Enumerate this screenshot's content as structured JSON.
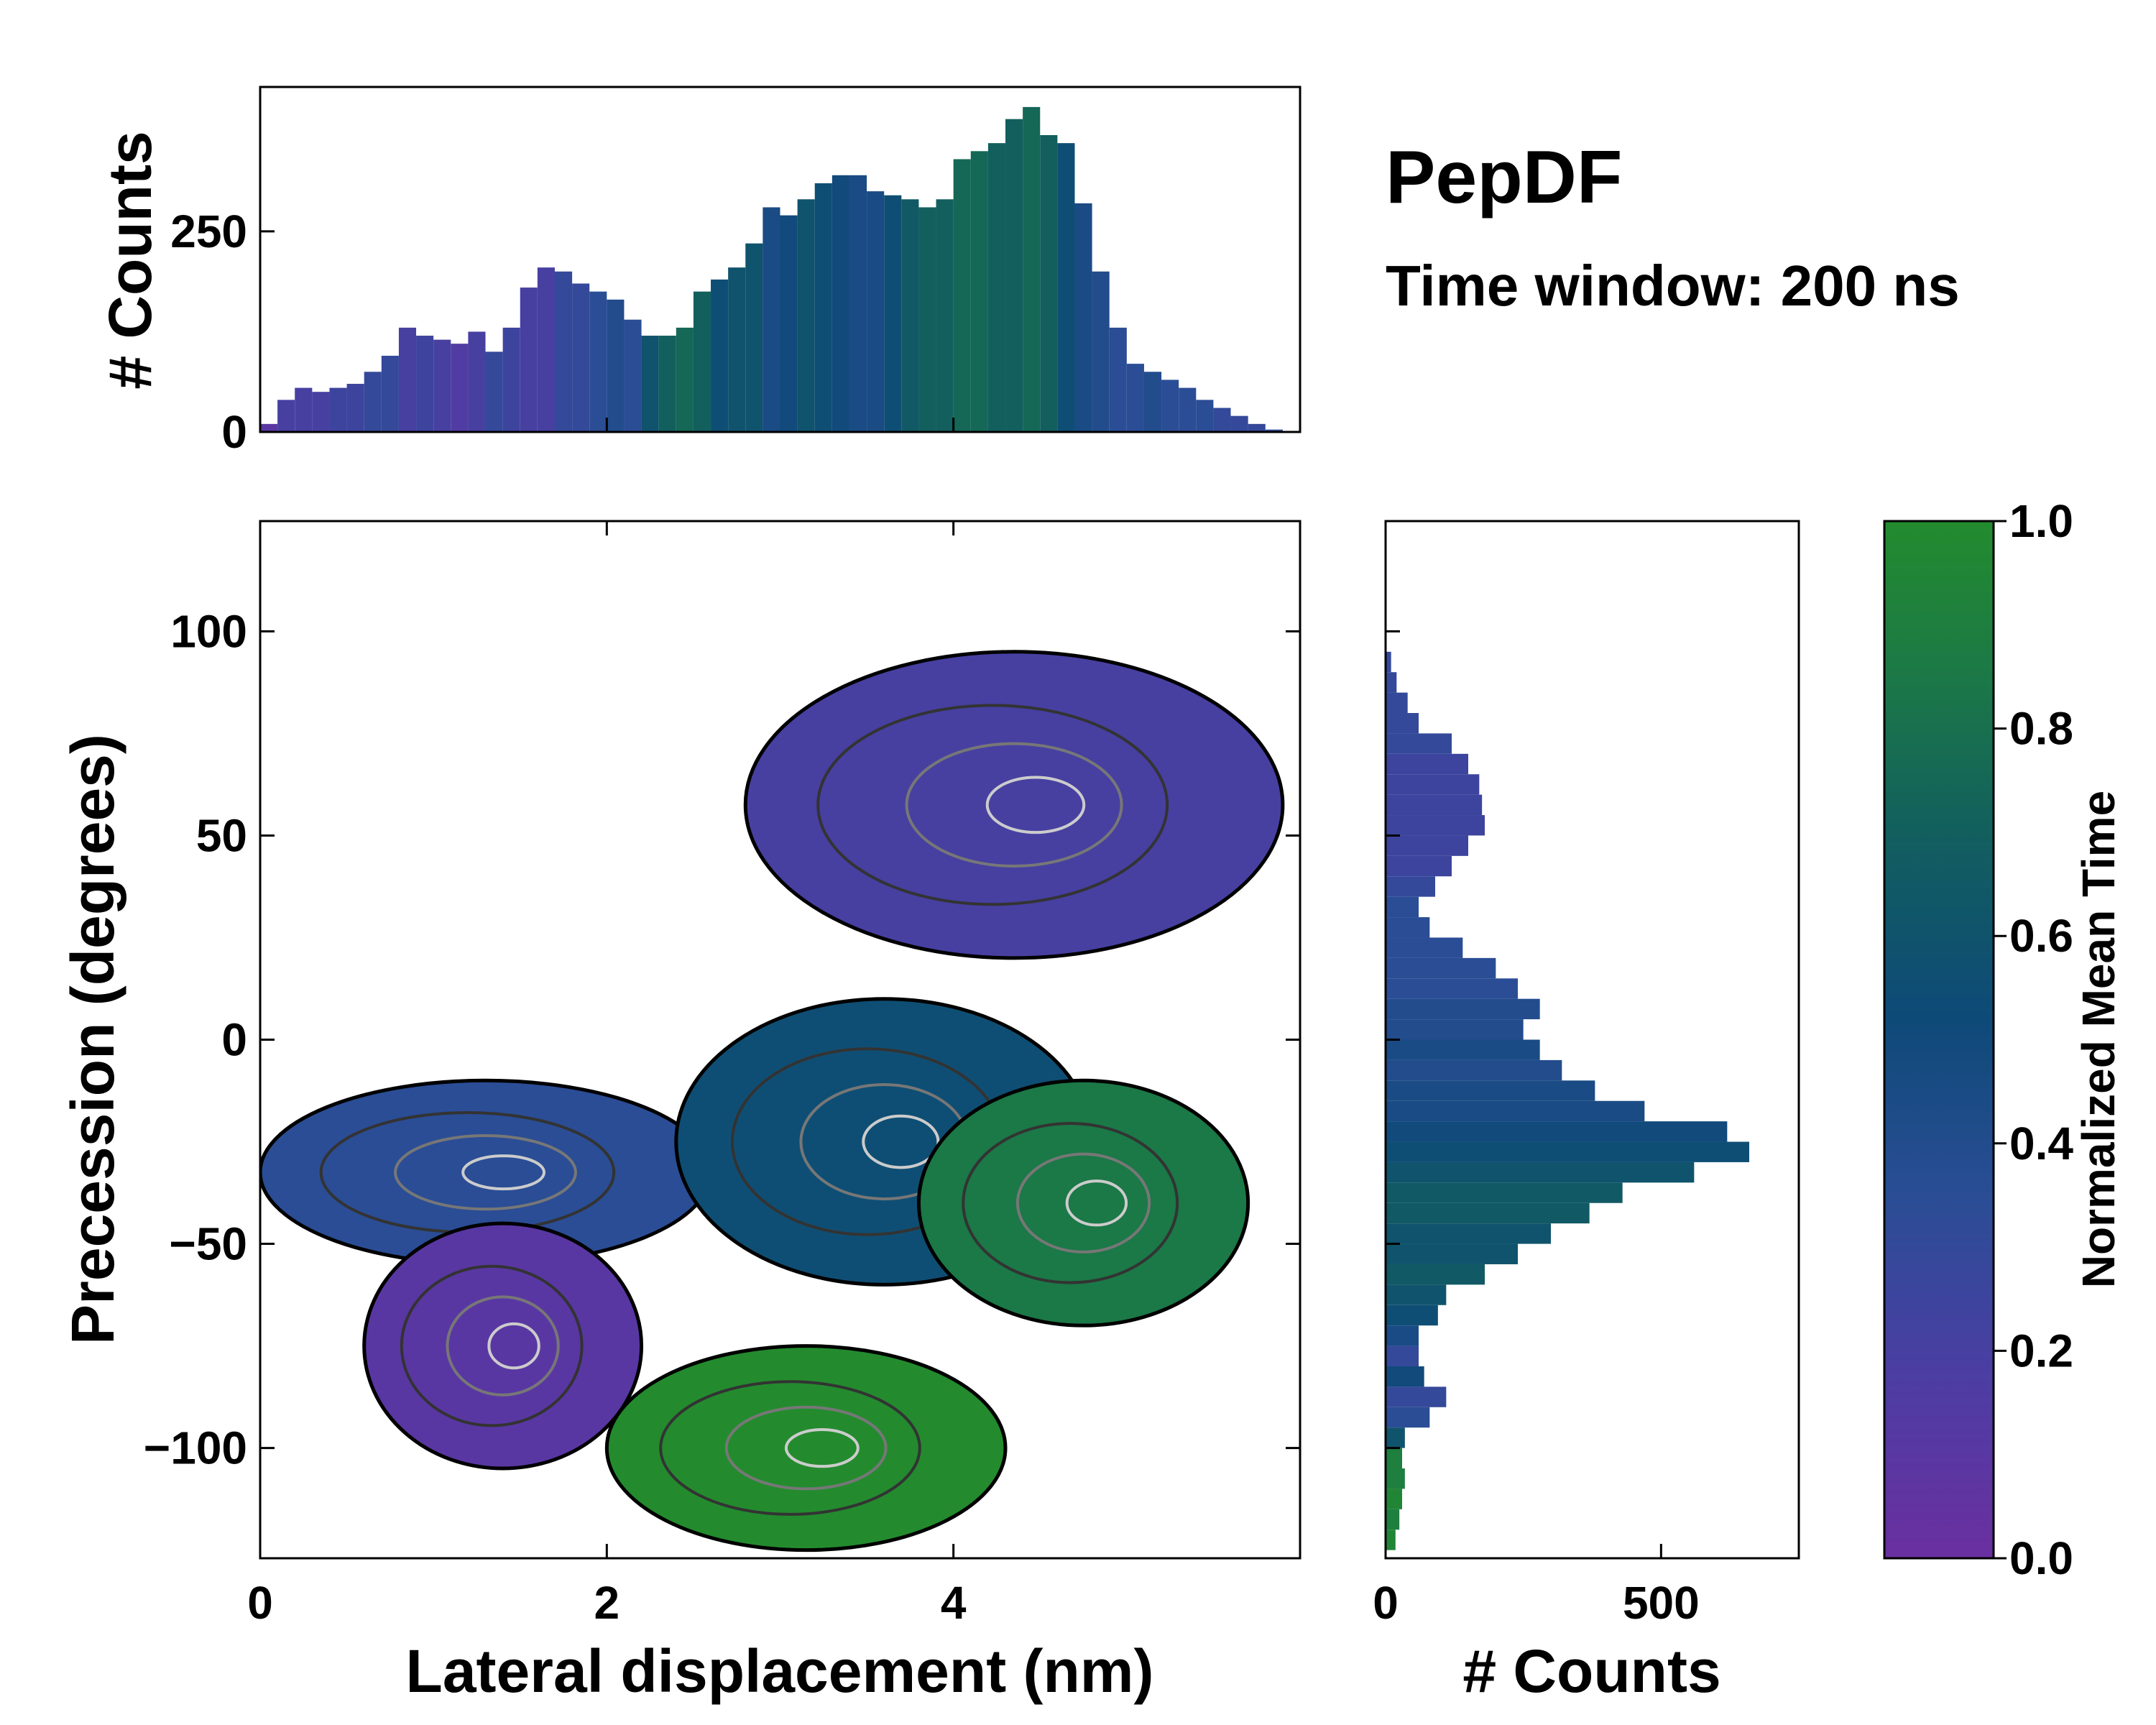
{
  "chart_data": [
    {
      "id": "main-2d",
      "type": "heatmap",
      "description_title": "PepDF",
      "subtitle": "Time window: 200 ns",
      "xlabel": "Lateral displacement (nm)",
      "ylabel": "Precession (degrees)",
      "xlim": [
        0,
        6.0
      ],
      "ylim": [
        -127,
        127
      ],
      "xticks": [
        0,
        2,
        4
      ],
      "xtick_labels": [
        "0",
        "2",
        "4"
      ],
      "yticks": [
        100,
        50,
        0,
        -50,
        -100
      ],
      "ytick_labels": [
        "100",
        "50",
        "0",
        "−50",
        "−100"
      ],
      "regions": [
        {
          "name": "upper-purple-blob",
          "color_value": 0.2,
          "x": [
            2.8,
            5.9
          ],
          "y": [
            20,
            95
          ]
        },
        {
          "name": "left-blue-band",
          "color_value": 0.35,
          "x": [
            0.0,
            2.6
          ],
          "y": [
            -55,
            -10
          ]
        },
        {
          "name": "center-teal-band",
          "color_value": 0.55,
          "x": [
            2.4,
            4.8
          ],
          "y": [
            -60,
            10
          ]
        },
        {
          "name": "lower-left-purple",
          "color_value": 0.1,
          "x": [
            0.6,
            2.2
          ],
          "y": [
            -105,
            -45
          ]
        },
        {
          "name": "bottom-green",
          "color_value": 1.0,
          "x": [
            2.0,
            4.3
          ],
          "y": [
            -125,
            -75
          ]
        },
        {
          "name": "right-green",
          "color_value": 0.85,
          "x": [
            3.8,
            5.7
          ],
          "y": [
            -70,
            -10
          ]
        }
      ]
    },
    {
      "id": "top-hist",
      "type": "bar",
      "ylabel": "# Counts",
      "xlim": [
        0,
        6.0
      ],
      "ylim": [
        0,
        430
      ],
      "yticks": [
        0,
        250
      ],
      "ytick_labels": [
        "0",
        "250"
      ],
      "x": [
        0.05,
        0.15,
        0.25,
        0.35,
        0.45,
        0.55,
        0.65,
        0.75,
        0.85,
        0.95,
        1.05,
        1.15,
        1.25,
        1.35,
        1.45,
        1.55,
        1.65,
        1.75,
        1.85,
        1.95,
        2.05,
        2.15,
        2.25,
        2.35,
        2.45,
        2.55,
        2.65,
        2.75,
        2.85,
        2.95,
        3.05,
        3.15,
        3.25,
        3.35,
        3.45,
        3.55,
        3.65,
        3.75,
        3.85,
        3.95,
        4.05,
        4.15,
        4.25,
        4.35,
        4.45,
        4.55,
        4.65,
        4.75,
        4.85,
        4.95,
        5.05,
        5.15,
        5.25,
        5.35,
        5.45,
        5.55,
        5.65,
        5.75,
        5.85,
        5.95
      ],
      "values": [
        10,
        40,
        55,
        50,
        55,
        60,
        75,
        95,
        130,
        120,
        115,
        110,
        125,
        100,
        130,
        180,
        205,
        200,
        185,
        175,
        165,
        140,
        120,
        120,
        130,
        175,
        190,
        205,
        235,
        280,
        270,
        290,
        310,
        320,
        320,
        300,
        295,
        290,
        280,
        290,
        340,
        350,
        360,
        390,
        405,
        370,
        360,
        285,
        200,
        130,
        85,
        75,
        65,
        55,
        40,
        30,
        20,
        10,
        3,
        0
      ],
      "color_values": [
        0.1,
        0.2,
        0.2,
        0.2,
        0.25,
        0.25,
        0.3,
        0.3,
        0.2,
        0.25,
        0.2,
        0.15,
        0.2,
        0.3,
        0.25,
        0.2,
        0.2,
        0.3,
        0.3,
        0.35,
        0.4,
        0.35,
        0.6,
        0.7,
        0.75,
        0.7,
        0.55,
        0.6,
        0.6,
        0.45,
        0.5,
        0.6,
        0.55,
        0.5,
        0.45,
        0.45,
        0.55,
        0.65,
        0.7,
        0.7,
        0.75,
        0.75,
        0.7,
        0.7,
        0.75,
        0.7,
        0.55,
        0.45,
        0.4,
        0.35,
        0.35,
        0.4,
        0.35,
        0.35,
        0.35,
        0.3,
        0.3,
        0.3,
        0.3,
        0.3
      ]
    },
    {
      "id": "right-hist",
      "type": "bar",
      "orientation": "horizontal",
      "xlabel": "# Counts",
      "xlim": [
        0,
        750
      ],
      "xticks": [
        0,
        500
      ],
      "xtick_labels": [
        "0",
        "500"
      ],
      "y": [
        92.5,
        87.5,
        82.5,
        77.5,
        72.5,
        67.5,
        62.5,
        57.5,
        52.5,
        47.5,
        42.5,
        37.5,
        32.5,
        27.5,
        22.5,
        17.5,
        12.5,
        7.5,
        2.5,
        -2.5,
        -7.5,
        -12.5,
        -17.5,
        -22.5,
        -27.5,
        -32.5,
        -37.5,
        -42.5,
        -47.5,
        -52.5,
        -57.5,
        -62.5,
        -67.5,
        -72.5,
        -77.5,
        -82.5,
        -87.5,
        -92.5,
        -97.5,
        -102.5,
        -107.5,
        -112.5,
        -117.5,
        -122.5
      ],
      "values": [
        10,
        20,
        40,
        60,
        120,
        150,
        170,
        175,
        180,
        150,
        120,
        90,
        60,
        80,
        140,
        200,
        240,
        280,
        250,
        280,
        320,
        380,
        470,
        620,
        660,
        560,
        430,
        370,
        300,
        240,
        180,
        110,
        95,
        60,
        60,
        70,
        110,
        80,
        35,
        30,
        35,
        30,
        25,
        18
      ],
      "color_values": [
        0.3,
        0.3,
        0.3,
        0.3,
        0.3,
        0.25,
        0.25,
        0.25,
        0.25,
        0.25,
        0.25,
        0.3,
        0.35,
        0.35,
        0.35,
        0.35,
        0.35,
        0.4,
        0.4,
        0.45,
        0.4,
        0.45,
        0.45,
        0.5,
        0.55,
        0.6,
        0.65,
        0.65,
        0.6,
        0.6,
        0.65,
        0.6,
        0.55,
        0.45,
        0.3,
        0.5,
        0.3,
        0.35,
        0.6,
        0.9,
        0.9,
        0.95,
        0.9,
        0.95
      ]
    },
    {
      "id": "colorbar",
      "type": "colorbar",
      "label": "Normalized Mean Time",
      "range": [
        0.0,
        1.0
      ],
      "ticks": [
        0.0,
        0.2,
        0.4,
        0.6,
        0.8,
        1.0
      ],
      "tick_labels": [
        "0.0",
        "0.2",
        "0.4",
        "0.6",
        "0.8",
        "1.0"
      ],
      "colors": [
        "#6a2fa0",
        "#4b3ea3",
        "#2a4d95",
        "#0e4a78",
        "#125f5e",
        "#1c7a45",
        "#238b2e"
      ]
    }
  ]
}
